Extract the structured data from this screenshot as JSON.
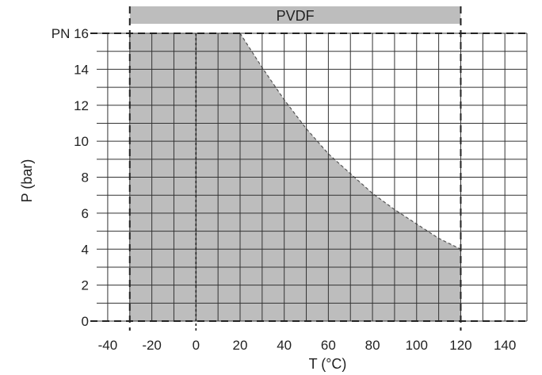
{
  "chart_data": {
    "type": "area",
    "material": "PVDF",
    "xlabel": "T (°C)",
    "ylabel": "P (bar)",
    "x_ticks": [
      -40,
      -20,
      0,
      20,
      40,
      60,
      80,
      100,
      120,
      140
    ],
    "y_ticks": [
      0,
      2,
      4,
      6,
      8,
      10,
      12,
      14,
      16
    ],
    "y_tick_labels": [
      "0",
      "2",
      "4",
      "6",
      "8",
      "10",
      "12",
      "14",
      "PN 16"
    ],
    "xlim": [
      -45,
      150
    ],
    "ylim": [
      0,
      16
    ],
    "temperature_range": [
      -30,
      120
    ],
    "nominal_pressure": 16,
    "grid": true,
    "series": [
      {
        "x": [
          -30,
          20,
          30,
          40,
          50,
          60,
          70,
          80,
          90,
          100,
          110,
          120,
          120,
          -30
        ],
        "y": [
          16,
          16,
          14.1,
          12.3,
          10.7,
          9.3,
          8.2,
          7.1,
          6.2,
          5.4,
          4.6,
          4.0,
          0,
          0
        ]
      }
    ],
    "colors": {
      "fill": "#bdbdbd",
      "grid": "#333333",
      "band": "#bdbdbd",
      "dash": "#222222"
    }
  }
}
